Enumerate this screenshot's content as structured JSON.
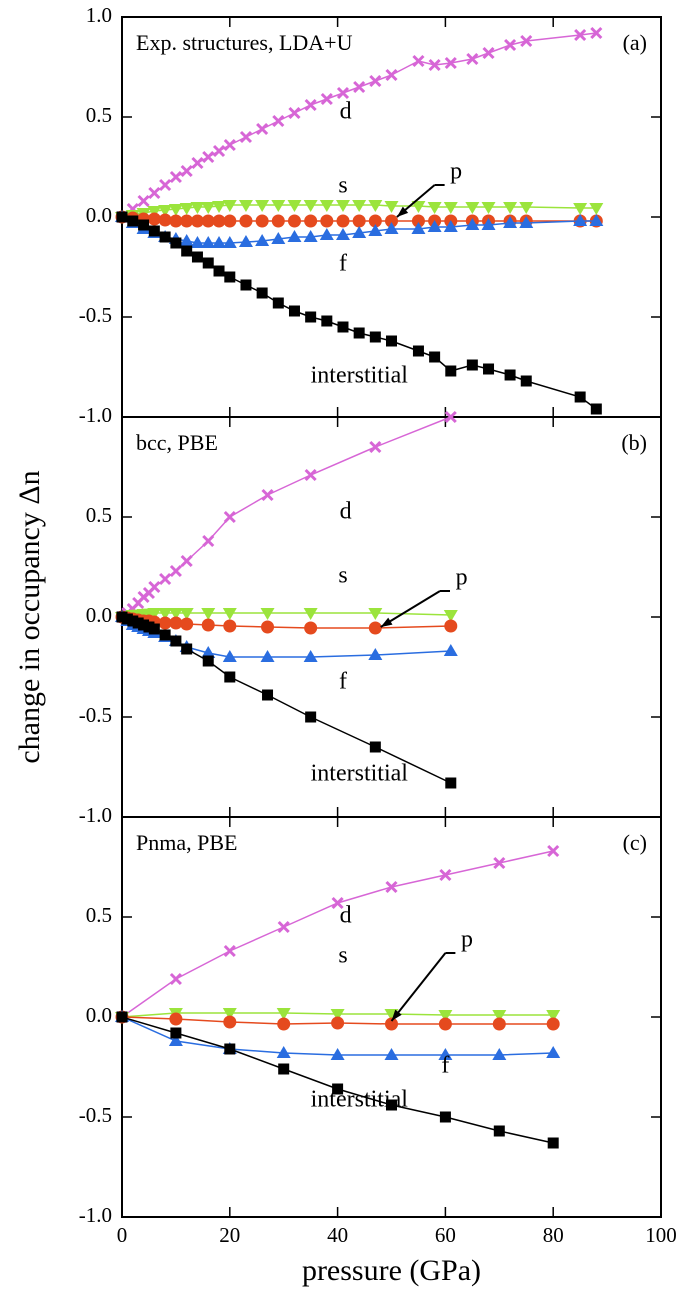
{
  "chart_data": [
    {
      "type": "line",
      "title": "Exp. structures, LDA+U",
      "panel_label": "(a)",
      "x": [
        0,
        2,
        4,
        6,
        8,
        10,
        12,
        14,
        16,
        18,
        20,
        23,
        26,
        29,
        32,
        35,
        38,
        41,
        44,
        47,
        50,
        55,
        58,
        61,
        65,
        68,
        72,
        75,
        85,
        88
      ],
      "series": [
        {
          "name": "d",
          "color": "#d766d6",
          "marker": "x",
          "values": [
            0,
            0.04,
            0.08,
            0.12,
            0.16,
            0.2,
            0.23,
            0.27,
            0.3,
            0.33,
            0.36,
            0.4,
            0.44,
            0.48,
            0.52,
            0.56,
            0.59,
            0.62,
            0.65,
            0.68,
            0.71,
            0.78,
            0.76,
            0.77,
            0.79,
            0.82,
            0.86,
            0.88,
            0.91,
            0.92
          ]
        },
        {
          "name": "s",
          "color": "#9be43c",
          "marker": "triangle-down",
          "values": [
            0,
            0.01,
            0.02,
            0.03,
            0.035,
            0.04,
            0.045,
            0.05,
            0.05,
            0.055,
            0.06,
            0.06,
            0.06,
            0.06,
            0.06,
            0.06,
            0.06,
            0.06,
            0.06,
            0.06,
            0.055,
            0.055,
            0.05,
            0.05,
            0.05,
            0.05,
            0.05,
            0.05,
            0.045,
            0.045
          ]
        },
        {
          "name": "p",
          "color": "#e54a1e",
          "marker": "circle",
          "values": [
            0,
            -0.005,
            -0.01,
            -0.01,
            -0.015,
            -0.02,
            -0.02,
            -0.02,
            -0.02,
            -0.02,
            -0.02,
            -0.02,
            -0.02,
            -0.02,
            -0.02,
            -0.02,
            -0.02,
            -0.02,
            -0.02,
            -0.02,
            -0.02,
            -0.02,
            -0.02,
            -0.02,
            -0.02,
            -0.02,
            -0.02,
            -0.02,
            -0.02,
            -0.02
          ]
        },
        {
          "name": "f",
          "color": "#2a6de0",
          "marker": "triangle-up",
          "values": [
            0,
            -0.03,
            -0.06,
            -0.08,
            -0.1,
            -0.11,
            -0.12,
            -0.13,
            -0.13,
            -0.13,
            -0.13,
            -0.125,
            -0.12,
            -0.11,
            -0.1,
            -0.1,
            -0.09,
            -0.09,
            -0.08,
            -0.07,
            -0.06,
            -0.06,
            -0.05,
            -0.05,
            -0.04,
            -0.04,
            -0.03,
            -0.03,
            -0.02,
            -0.02
          ]
        },
        {
          "name": "interstitial",
          "color": "#000000",
          "marker": "square",
          "values": [
            0,
            -0.02,
            -0.04,
            -0.07,
            -0.1,
            -0.13,
            -0.17,
            -0.2,
            -0.23,
            -0.27,
            -0.3,
            -0.34,
            -0.38,
            -0.43,
            -0.47,
            -0.5,
            -0.52,
            -0.55,
            -0.58,
            -0.6,
            -0.62,
            -0.67,
            -0.7,
            -0.77,
            -0.74,
            -0.76,
            -0.79,
            -0.82,
            -0.9,
            -0.96
          ]
        }
      ],
      "xlim": [
        0,
        100
      ],
      "ylim": [
        -1,
        1
      ],
      "yticks": [
        {
          "value": -1,
          "label": "-1.0"
        },
        -0.5,
        {
          "value": 0,
          "label": "0.0"
        },
        0.5,
        {
          "value": 1,
          "label": "1.0"
        }
      ]
    },
    {
      "type": "line",
      "title": "bcc, PBE",
      "panel_label": "(b)",
      "ylabel": "change in occupancy Δn",
      "x": [
        0,
        1,
        2,
        3,
        4,
        5,
        6,
        8,
        10,
        12,
        16,
        20,
        27,
        35,
        47,
        61
      ],
      "series": [
        {
          "name": "d",
          "color": "#d766d6",
          "marker": "x",
          "values": [
            0,
            0.02,
            0.04,
            0.07,
            0.1,
            0.12,
            0.15,
            0.19,
            0.23,
            0.28,
            0.38,
            0.5,
            0.61,
            0.71,
            0.85,
            1.0
          ]
        },
        {
          "name": "s",
          "color": "#9be43c",
          "marker": "triangle-down",
          "values": [
            0,
            0.005,
            0.01,
            0.012,
            0.015,
            0.017,
            0.02,
            0.02,
            0.02,
            0.02,
            0.02,
            0.02,
            0.02,
            0.02,
            0.02,
            0.01
          ]
        },
        {
          "name": "p",
          "color": "#e54a1e",
          "marker": "circle",
          "values": [
            0,
            -0.005,
            -0.01,
            -0.015,
            -0.02,
            -0.02,
            -0.025,
            -0.03,
            -0.03,
            -0.035,
            -0.04,
            -0.045,
            -0.05,
            -0.055,
            -0.055,
            -0.045
          ]
        },
        {
          "name": "f",
          "color": "#2a6de0",
          "marker": "triangle-up",
          "values": [
            0,
            -0.02,
            -0.04,
            -0.05,
            -0.06,
            -0.07,
            -0.08,
            -0.1,
            -0.12,
            -0.15,
            -0.18,
            -0.2,
            -0.2,
            -0.2,
            -0.19,
            -0.17
          ]
        },
        {
          "name": "interstitial",
          "color": "#000000",
          "marker": "square",
          "values": [
            0,
            -0.01,
            -0.02,
            -0.03,
            -0.04,
            -0.05,
            -0.06,
            -0.09,
            -0.12,
            -0.16,
            -0.22,
            -0.3,
            -0.39,
            -0.5,
            -0.65,
            -0.83
          ]
        }
      ],
      "xlim": [
        0,
        100
      ],
      "ylim": [
        -1,
        1
      ],
      "yticks": [
        {
          "value": -1,
          "label": "-1.0"
        },
        -0.5,
        {
          "value": 0,
          "label": "0.0"
        },
        0.5
      ]
    },
    {
      "type": "line",
      "title": "Pnma, PBE",
      "panel_label": "(c)",
      "xlabel": "pressure (GPa)",
      "x": [
        0,
        10,
        20,
        30,
        40,
        50,
        60,
        70,
        80
      ],
      "series": [
        {
          "name": "d",
          "color": "#d766d6",
          "marker": "x",
          "values": [
            0,
            0.19,
            0.33,
            0.45,
            0.57,
            0.65,
            0.71,
            0.77,
            0.83
          ]
        },
        {
          "name": "s",
          "color": "#9be43c",
          "marker": "triangle-down",
          "values": [
            0,
            0.02,
            0.02,
            0.02,
            0.015,
            0.015,
            0.01,
            0.01,
            0.01
          ]
        },
        {
          "name": "p",
          "color": "#e54a1e",
          "marker": "circle",
          "values": [
            0,
            -0.01,
            -0.025,
            -0.035,
            -0.03,
            -0.035,
            -0.035,
            -0.035,
            -0.035
          ]
        },
        {
          "name": "f",
          "color": "#2a6de0",
          "marker": "triangle-up",
          "values": [
            0,
            -0.12,
            -0.16,
            -0.18,
            -0.19,
            -0.19,
            -0.19,
            -0.19,
            -0.18
          ]
        },
        {
          "name": "interstitial",
          "color": "#000000",
          "marker": "square",
          "values": [
            0,
            -0.08,
            -0.16,
            -0.26,
            -0.36,
            -0.44,
            -0.5,
            -0.57,
            -0.63
          ]
        }
      ],
      "xlim": [
        0,
        100
      ],
      "ylim": [
        -1,
        1
      ],
      "yticks": [
        {
          "value": -1,
          "label": "-1.0"
        },
        -0.5,
        {
          "value": 0,
          "label": "0.0"
        },
        0.5
      ],
      "xticks": [
        0,
        20,
        40,
        60,
        80,
        100
      ]
    }
  ]
}
